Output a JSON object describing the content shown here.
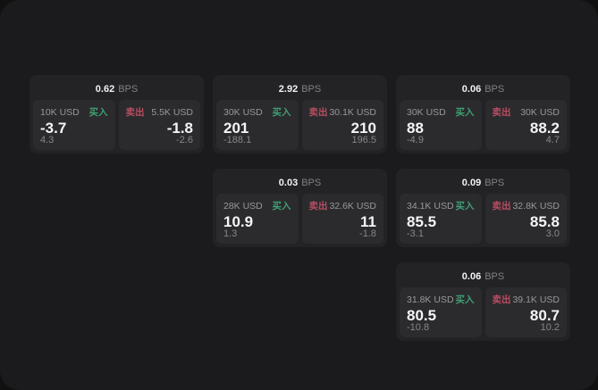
{
  "labels": {
    "bps_suffix": "BPS",
    "buy": "买入",
    "sell": "卖出"
  },
  "colors": {
    "outer_bg": "#111112",
    "page_bg": "#1b1b1d",
    "card_bg": "#232326",
    "panel_bg": "#2b2b2e",
    "buy": "#3f9e72",
    "sell": "#b84d61"
  },
  "columns": [
    {
      "cards": [
        {
          "bps": "0.62",
          "buy": {
            "amount": "10K USD",
            "price": "-3.7",
            "delta": "4.3"
          },
          "sell": {
            "amount": "5.5K USD",
            "price": "-1.8",
            "delta": "-2.6"
          }
        }
      ]
    },
    {
      "cards": [
        {
          "bps": "2.92",
          "buy": {
            "amount": "30K USD",
            "price": "201",
            "delta": "-188.1"
          },
          "sell": {
            "amount": "30.1K USD",
            "price": "210",
            "delta": "196.5"
          }
        },
        {
          "bps": "0.03",
          "buy": {
            "amount": "28K USD",
            "price": "10.9",
            "delta": "1.3"
          },
          "sell": {
            "amount": "32.6K USD",
            "price": "11",
            "delta": "-1.8"
          }
        }
      ]
    },
    {
      "cards": [
        {
          "bps": "0.06",
          "buy": {
            "amount": "30K USD",
            "price": "88",
            "delta": "-4.9"
          },
          "sell": {
            "amount": "30K USD",
            "price": "88.2",
            "delta": "4.7"
          }
        },
        {
          "bps": "0.09",
          "buy": {
            "amount": "34.1K USD",
            "price": "85.5",
            "delta": "-3.1"
          },
          "sell": {
            "amount": "32.8K USD",
            "price": "85.8",
            "delta": "3.0"
          }
        },
        {
          "bps": "0.06",
          "buy": {
            "amount": "31.8K USD",
            "price": "80.5",
            "delta": "-10.8"
          },
          "sell": {
            "amount": "39.1K USD",
            "price": "80.7",
            "delta": "10.2"
          }
        }
      ]
    }
  ]
}
